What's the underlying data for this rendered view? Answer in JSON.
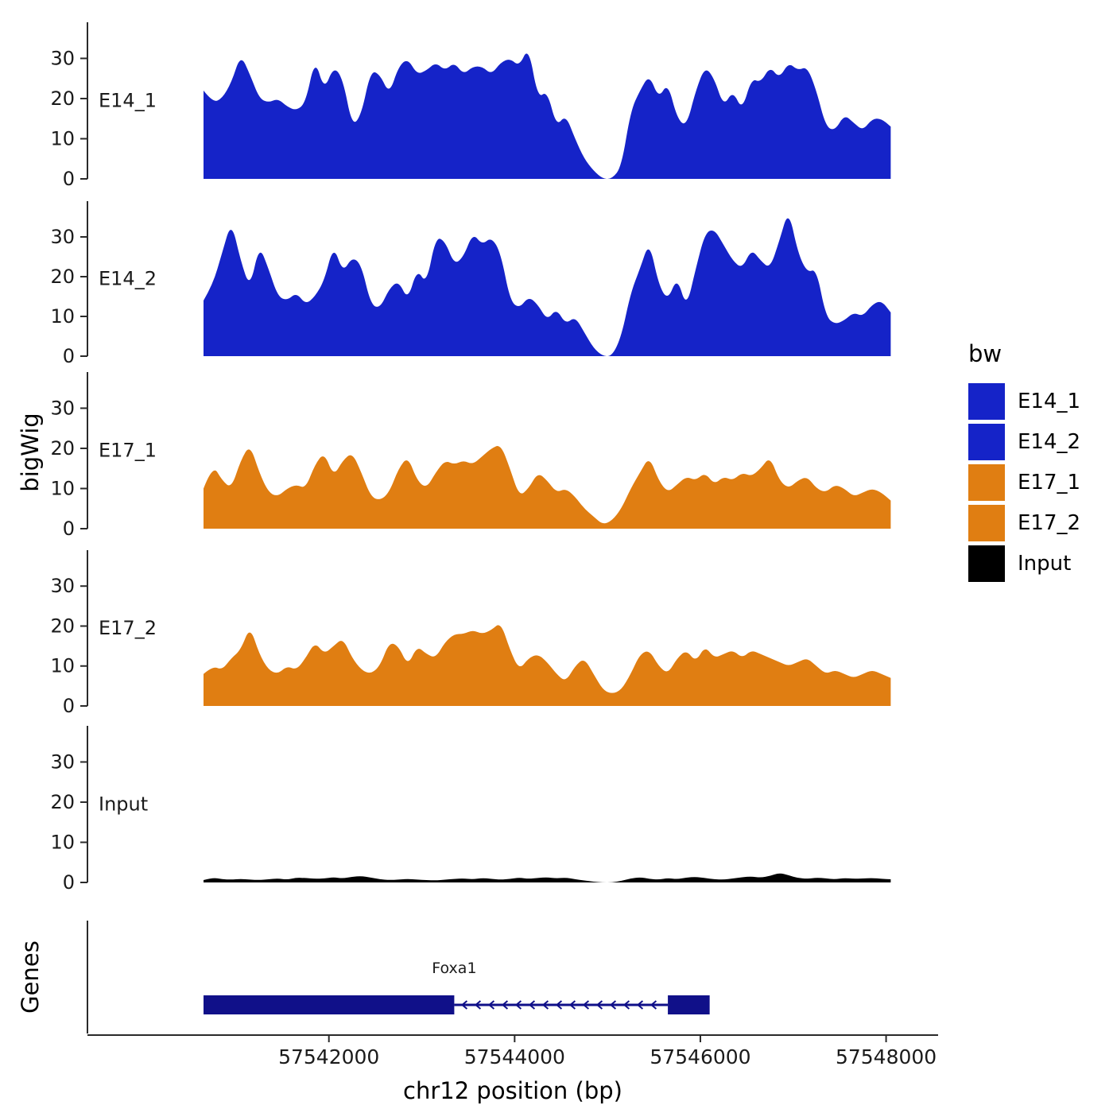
{
  "colors": {
    "track_blue": "#1523C8",
    "track_orange": "#E07E12",
    "input_black": "#000000",
    "gene": "#101089",
    "axis": "#2a2a2a",
    "text": "#1a1a1a"
  },
  "axes": {
    "y_label": "bigWig",
    "genes_label": "Genes",
    "x_label": "chr12 position (bp)",
    "x_ticks": [
      57542000,
      57544000,
      57546000,
      57548000
    ],
    "x_tick_labels": [
      "57542000",
      "57544000",
      "57546000",
      "57548000"
    ],
    "y_ticks": [
      0,
      10,
      20,
      30
    ]
  },
  "legend": {
    "title": "bw",
    "items": [
      {
        "label": "E14_1",
        "color": "#1523C8"
      },
      {
        "label": "E14_2",
        "color": "#1523C8"
      },
      {
        "label": "E17_1",
        "color": "#E07E12"
      },
      {
        "label": "E17_2",
        "color": "#E07E12"
      },
      {
        "label": "Input",
        "color": "#000000"
      }
    ]
  },
  "chart_data": {
    "type": "area",
    "title": "",
    "xlabel": "chr12 position (bp)",
    "ylabel": "bigWig",
    "chromosome": "chr12",
    "x_domain": [
      57539400,
      57548560
    ],
    "x_start": 57540650,
    "x_step": 100,
    "ylim": [
      0,
      39
    ],
    "y_ticks": [
      0,
      10,
      20,
      30
    ],
    "x_ticks": [
      57542000,
      57544000,
      57546000,
      57548000
    ],
    "grid": false,
    "legend_position": "right",
    "tracks": [
      {
        "name": "E14_1",
        "color": "#1523C8",
        "values": [
          22,
          19,
          20,
          24,
          31,
          26,
          20,
          19,
          20,
          18,
          17,
          19,
          30,
          22,
          28,
          25,
          13,
          16,
          27,
          26,
          21,
          28,
          30,
          26,
          27,
          29,
          27,
          29,
          26,
          28,
          28,
          26,
          29,
          30,
          28,
          33,
          20,
          22,
          13,
          16,
          10,
          5,
          2,
          0,
          0,
          3,
          17,
          22,
          26,
          20,
          24,
          15,
          13,
          22,
          28,
          25,
          18,
          22,
          17,
          25,
          24,
          28,
          25,
          29,
          27,
          28,
          22,
          13,
          12,
          16,
          14,
          12,
          15,
          15,
          13
        ]
      },
      {
        "name": "E14_2",
        "color": "#1523C8",
        "values": [
          14,
          18,
          26,
          34,
          24,
          17,
          28,
          22,
          15,
          14,
          16,
          13,
          15,
          19,
          28,
          21,
          25,
          23,
          13,
          12,
          17,
          19,
          14,
          22,
          18,
          30,
          29,
          23,
          25,
          31,
          28,
          30,
          26,
          14,
          12,
          15,
          13,
          9,
          12,
          8,
          10,
          6,
          2,
          0,
          0,
          5,
          16,
          22,
          29,
          18,
          14,
          20,
          12,
          22,
          31,
          32,
          28,
          24,
          22,
          27,
          24,
          22,
          29,
          37,
          26,
          21,
          22,
          10,
          8,
          9,
          11,
          10,
          13,
          14,
          11
        ]
      },
      {
        "name": "E17_1",
        "color": "#E07E12",
        "values": [
          10,
          16,
          12,
          10,
          17,
          21,
          14,
          9,
          8,
          10,
          11,
          10,
          16,
          19,
          13,
          17,
          19,
          14,
          8,
          7,
          9,
          15,
          18,
          12,
          10,
          14,
          17,
          16,
          17,
          16,
          18,
          20,
          21,
          15,
          8,
          10,
          14,
          12,
          9,
          10,
          8,
          5,
          3,
          1,
          2,
          5,
          10,
          14,
          18,
          12,
          9,
          11,
          13,
          12,
          14,
          11,
          13,
          12,
          14,
          13,
          15,
          18,
          12,
          10,
          12,
          13,
          10,
          9,
          11,
          10,
          8,
          9,
          10,
          9,
          7
        ]
      },
      {
        "name": "E17_2",
        "color": "#E07E12",
        "values": [
          8,
          10,
          9,
          12,
          14,
          20,
          13,
          9,
          8,
          10,
          9,
          12,
          16,
          13,
          15,
          17,
          12,
          9,
          8,
          10,
          16,
          15,
          10,
          15,
          13,
          12,
          16,
          18,
          18,
          19,
          18,
          19,
          21,
          14,
          9,
          12,
          13,
          11,
          8,
          6,
          10,
          12,
          8,
          4,
          3,
          4,
          8,
          13,
          14,
          10,
          8,
          12,
          14,
          11,
          15,
          12,
          13,
          14,
          12,
          14,
          13,
          12,
          11,
          10,
          11,
          12,
          10,
          8,
          9,
          8,
          7,
          8,
          9,
          8,
          7
        ]
      },
      {
        "name": "Input",
        "color": "#000000",
        "values": [
          0.6,
          1.2,
          0.8,
          0.7,
          0.9,
          0.7,
          0.6,
          0.8,
          1.0,
          0.7,
          1.2,
          1.1,
          0.9,
          1.0,
          1.3,
          1.0,
          1.4,
          1.6,
          1.2,
          0.8,
          0.6,
          0.7,
          0.9,
          0.7,
          0.6,
          0.5,
          0.7,
          0.9,
          1.0,
          0.8,
          1.1,
          0.9,
          0.7,
          0.9,
          1.2,
          0.9,
          1.1,
          1.3,
          1.0,
          1.2,
          0.8,
          0.5,
          0.2,
          0,
          0,
          0.4,
          1.0,
          1.3,
          0.9,
          0.7,
          1.1,
          0.8,
          1.2,
          1.4,
          1.1,
          0.8,
          0.7,
          1.0,
          1.3,
          1.5,
          1.2,
          1.6,
          2.4,
          1.8,
          1.1,
          0.9,
          1.2,
          1.0,
          0.8,
          1.1,
          0.9,
          1.0,
          1.1,
          0.9,
          0.8
        ]
      }
    ],
    "gene_track": {
      "label": "Foxa1",
      "strand": "-",
      "color": "#101089",
      "exons": [
        [
          57540650,
          57543350
        ],
        [
          57545650,
          57546100
        ]
      ],
      "span": [
        57540650,
        57546100
      ],
      "label_bp": 57543350
    }
  }
}
